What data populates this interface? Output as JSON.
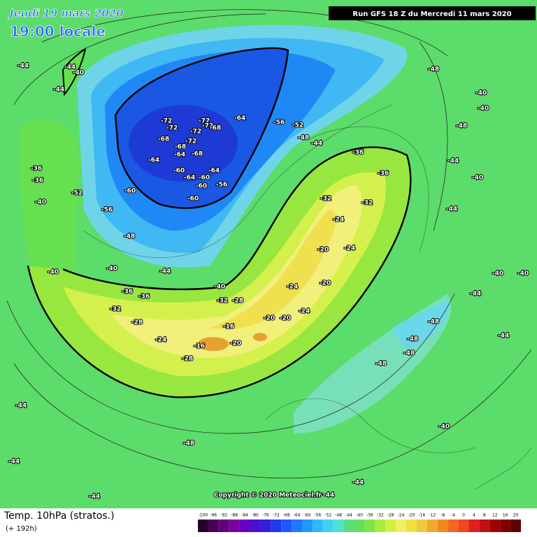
{
  "header": {
    "date": "Jeudi 19 mars 2020",
    "time": "19:00 locale",
    "run": "Run GFS 18 Z du Mercredi 11 mars 2020"
  },
  "map": {
    "labels": [
      -72,
      -72,
      -77,
      -72,
      -68,
      -64,
      -72,
      -68,
      -72,
      -68,
      -64,
      -68,
      -64,
      -60,
      -64,
      -64,
      -60,
      -60,
      -56,
      -60,
      -60,
      -56,
      -52,
      -48,
      -44,
      -36,
      -36,
      -32,
      -32,
      -24,
      -24,
      -20,
      -20,
      -24,
      -24,
      -20,
      -20,
      -28,
      -32,
      -16,
      -20,
      -16,
      -28,
      -24,
      -28,
      -32,
      -36,
      -36,
      -40,
      -40,
      -44,
      -40,
      -44,
      -40,
      -44,
      -44,
      -48,
      -40,
      -40,
      -48,
      -44,
      -40,
      -44,
      -40,
      -40,
      -44,
      -48,
      -48,
      -48,
      -48,
      -44,
      -44,
      -40,
      -48,
      -44,
      -44,
      -44,
      -36,
      -36,
      -40,
      -52,
      -56,
      -48,
      -44
    ],
    "copyright": "Copyright © 2020 Meteociel.fr"
  },
  "footer": {
    "parameter": "Temp. 10hPa (stratos.)",
    "lead": "(+ 192h)",
    "scale": {
      "labels": [
        -100,
        -96,
        -92,
        -88,
        -84,
        -80,
        -76,
        -72,
        -68,
        -64,
        -60,
        -56,
        -52,
        -48,
        -44,
        -40,
        -36,
        -32,
        -28,
        -24,
        -20,
        -16,
        -12,
        -8,
        -4,
        0,
        4,
        8,
        12,
        16,
        20
      ],
      "colors": [
        "#2a002a",
        "#48005a",
        "#640080",
        "#7a00a0",
        "#6a00c0",
        "#4a10d0",
        "#3020e0",
        "#2038f0",
        "#2058ff",
        "#2078ff",
        "#2098ff",
        "#30b8ff",
        "#40d0f0",
        "#50e0d0",
        "#5cdc80",
        "#60e060",
        "#80e448",
        "#a8ec40",
        "#d0f040",
        "#f0f060",
        "#f0e040",
        "#f0c840",
        "#f0a830",
        "#f08820",
        "#f06820",
        "#f04820",
        "#e02020",
        "#c01010",
        "#a00000",
        "#800000",
        "#600000"
      ]
    }
  }
}
